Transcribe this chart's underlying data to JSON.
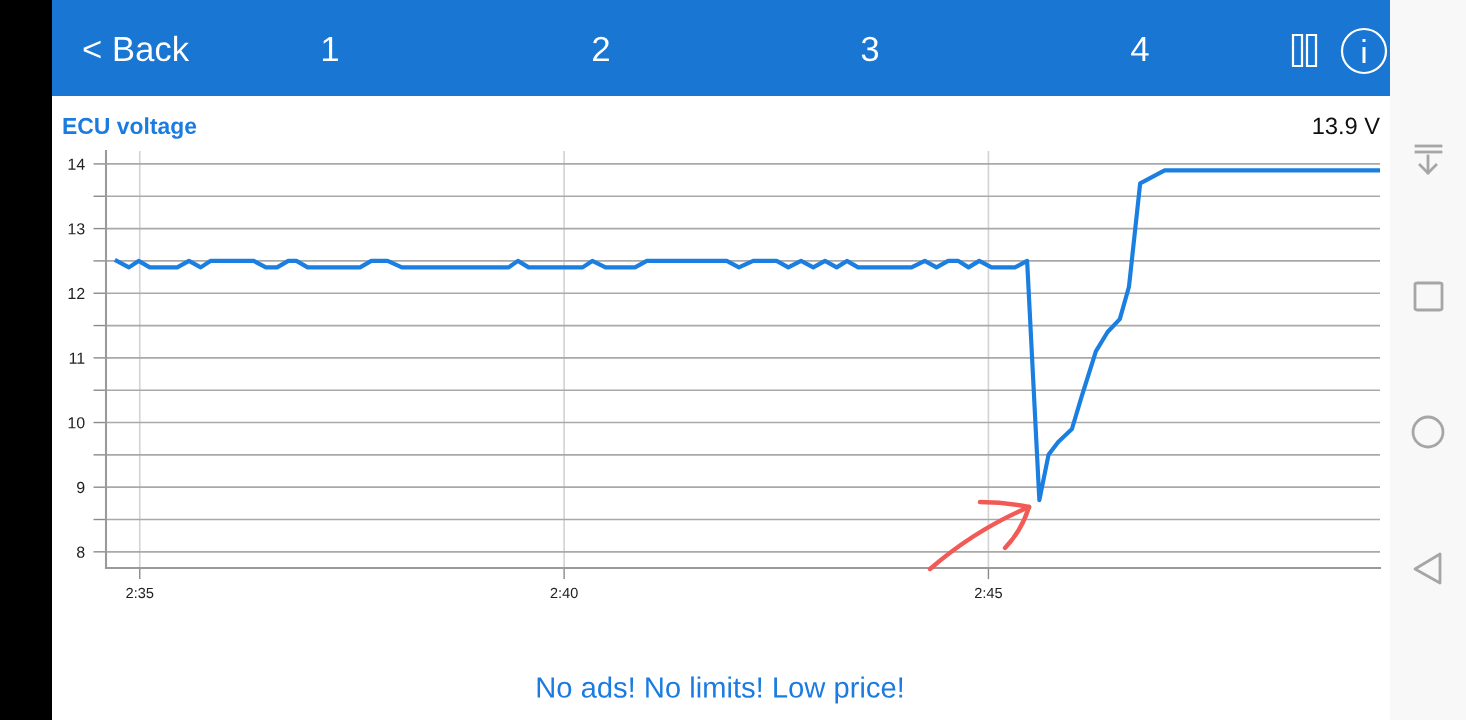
{
  "chart_data": {
    "type": "line",
    "title": "ECU voltage",
    "x": [
      2.5788,
      2.5812,
      2.5831,
      2.5853,
      2.5907,
      2.593,
      2.5953,
      2.5972,
      2.6057,
      2.6081,
      2.6103,
      2.6125,
      2.6141,
      2.6163,
      2.6266,
      2.6288,
      2.632,
      2.6348,
      2.6558,
      2.6576,
      2.6597,
      2.6703,
      2.6722,
      2.6748,
      2.6806,
      2.6829,
      2.6986,
      2.701,
      2.7038,
      2.7084,
      2.7107,
      2.7132,
      2.7156,
      2.7179,
      2.7202,
      2.7222,
      2.7244,
      2.7349,
      2.7375,
      2.7398,
      2.7421,
      2.7441,
      2.7461,
      2.7482,
      2.7506,
      2.7552,
      2.7576,
      2.76,
      2.7618,
      2.7637,
      2.7664,
      2.7683,
      2.7711,
      2.7734,
      2.7758,
      2.7776,
      2.7798,
      2.7846,
      2.8269
    ],
    "series": [
      {
        "color": "#1a7fe0",
        "values": [
          12.5,
          12.4,
          12.5,
          12.4,
          12.4,
          12.5,
          12.4,
          12.5,
          12.5,
          12.4,
          12.4,
          12.5,
          12.5,
          12.4,
          12.4,
          12.5,
          12.5,
          12.4,
          12.4,
          12.5,
          12.4,
          12.4,
          12.5,
          12.4,
          12.4,
          12.5,
          12.5,
          12.4,
          12.5,
          12.5,
          12.4,
          12.5,
          12.4,
          12.5,
          12.4,
          12.5,
          12.4,
          12.4,
          12.5,
          12.4,
          12.5,
          12.5,
          12.4,
          12.5,
          12.4,
          12.4,
          12.5,
          8.8,
          9.5,
          9.7,
          9.9,
          10.4,
          11.1,
          11.4,
          11.6,
          12.1,
          13.7,
          13.9,
          13.9
        ]
      }
    ],
    "xlim": [
      2.5767,
      2.8269
    ],
    "ylim": [
      7.75,
      14.2
    ],
    "xticks": [
      {
        "value": 2.58333,
        "label": "2:35"
      },
      {
        "value": 2.66667,
        "label": "2:40"
      },
      {
        "value": 2.75,
        "label": "2:45"
      }
    ],
    "yticks": [
      8,
      {
        "value": 8.5,
        "label": null
      },
      9,
      {
        "value": 9.5,
        "label": null
      },
      10,
      {
        "value": 10.5,
        "label": null
      },
      11,
      {
        "value": 11.5,
        "label": null
      },
      12,
      {
        "value": 12.5,
        "label": null
      },
      13,
      {
        "value": 13.5,
        "label": null
      },
      14
    ],
    "grid": true,
    "marker": "none",
    "line_style": "solid",
    "annotations": [
      "13.9 V",
      "< Back",
      "1",
      "2",
      "3",
      "4",
      "No ads! No limits! Low price!"
    ]
  }
}
